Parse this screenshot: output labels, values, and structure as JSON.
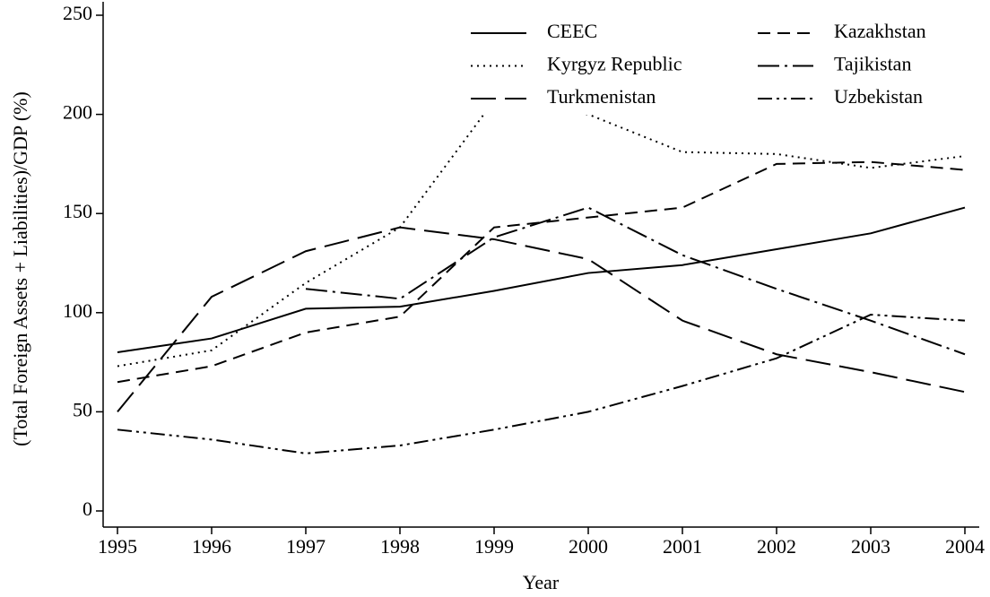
{
  "chart_data": {
    "type": "line",
    "x_label": "Year",
    "y_label": "(Total Foreign Assets + Liabilities)/GDP (%)",
    "x": [
      1995,
      1996,
      1997,
      1998,
      1999,
      2000,
      2001,
      2002,
      2003,
      2004
    ],
    "xlim": [
      1995,
      2004
    ],
    "xticks": [
      1995,
      1996,
      1997,
      1998,
      1999,
      2000,
      2001,
      2002,
      2003,
      2004
    ],
    "ylim": [
      0,
      250
    ],
    "yticks": [
      0,
      50,
      100,
      150,
      200,
      250
    ],
    "legend": "upper right",
    "series": [
      {
        "name": "CEEC",
        "color": "#000000",
        "dash": "none",
        "values": [
          80,
          87,
          102,
          103,
          111,
          120,
          124,
          132,
          140,
          153
        ]
      },
      {
        "name": "Kazakhstan",
        "color": "#000000",
        "dash": "14 8",
        "values": [
          65,
          73,
          90,
          98,
          143,
          148,
          153,
          175,
          176,
          172
        ]
      },
      {
        "name": "Kyrgyz Republic",
        "color": "#000000",
        "dash": "2 5",
        "values": [
          73,
          81,
          115,
          143,
          207,
          200,
          181,
          180,
          173,
          179
        ]
      },
      {
        "name": "Tajikistan",
        "color": "#000000",
        "dash": "24 6 3 6",
        "values": [
          null,
          null,
          112,
          107,
          138,
          153,
          129,
          112,
          96,
          79
        ]
      },
      {
        "name": "Turkmenistan",
        "color": "#000000",
        "dash": "28 10",
        "values": [
          50,
          108,
          131,
          143,
          137,
          127,
          96,
          79,
          70,
          60
        ]
      },
      {
        "name": "Uzbekistan",
        "color": "#000000",
        "dash": "16 5 3 5 3 5",
        "values": [
          41,
          36,
          29,
          33,
          41,
          50,
          63,
          77,
          99,
          96
        ]
      }
    ]
  }
}
